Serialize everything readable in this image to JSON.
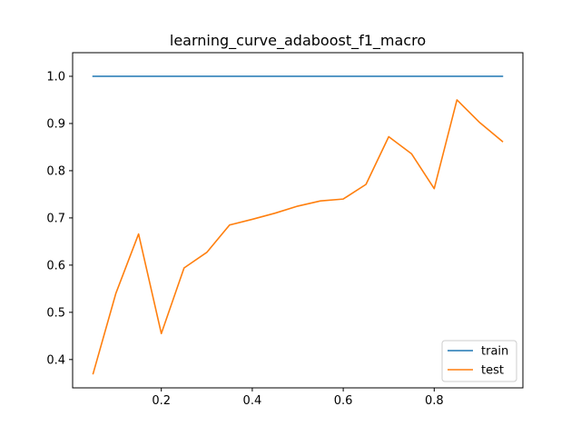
{
  "chart_data": {
    "type": "line",
    "title": "learning_curve_adaboost_f1_macro",
    "xlabel": "",
    "ylabel": "",
    "xlim": [
      0.005,
      0.995
    ],
    "ylim": [
      0.34,
      1.05
    ],
    "x_ticks": [
      0.2,
      0.4,
      0.6,
      0.8
    ],
    "x_tick_labels": [
      "0.2",
      "0.4",
      "0.6",
      "0.8"
    ],
    "y_ticks": [
      0.4,
      0.5,
      0.6,
      0.7,
      0.8,
      0.9,
      1.0
    ],
    "y_tick_labels": [
      "0.4",
      "0.5",
      "0.6",
      "0.7",
      "0.8",
      "0.9",
      "1.0"
    ],
    "grid": false,
    "legend_position": "lower-right",
    "x": [
      0.05,
      0.1,
      0.15,
      0.2,
      0.25,
      0.3,
      0.35,
      0.4,
      0.45,
      0.5,
      0.55,
      0.6,
      0.65,
      0.7,
      0.75,
      0.8,
      0.85,
      0.9,
      0.95
    ],
    "series": [
      {
        "name": "train",
        "color": "#1f77b4",
        "values": [
          1.0,
          1.0,
          1.0,
          1.0,
          1.0,
          1.0,
          1.0,
          1.0,
          1.0,
          1.0,
          1.0,
          1.0,
          1.0,
          1.0,
          1.0,
          1.0,
          1.0,
          1.0,
          1.0
        ]
      },
      {
        "name": "test",
        "color": "#ff7f0e",
        "values": [
          0.37,
          0.54,
          0.666,
          0.455,
          0.594,
          0.627,
          0.685,
          0.697,
          0.71,
          0.725,
          0.736,
          0.74,
          0.771,
          0.872,
          0.836,
          0.762,
          0.95,
          0.902,
          0.862
        ]
      }
    ]
  }
}
